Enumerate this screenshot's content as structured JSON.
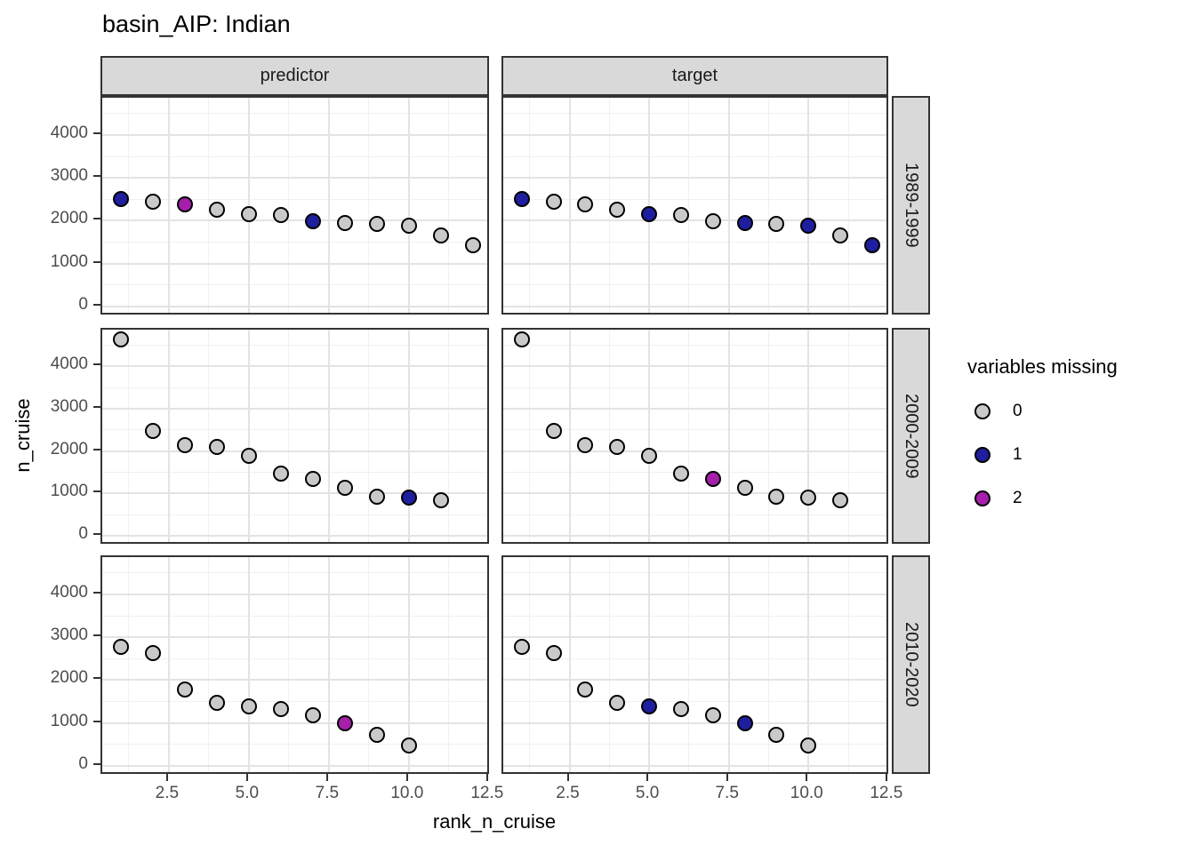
{
  "title": "basin_AIP: Indian",
  "legend": {
    "title": "variables missing",
    "items": [
      {
        "label": "0",
        "color": "#C9C9C9"
      },
      {
        "label": "1",
        "color": "#1E1E9E"
      },
      {
        "label": "2",
        "color": "#A51FAA"
      }
    ]
  },
  "chart_data": {
    "type": "scatter",
    "title": "basin_AIP: Indian",
    "xlabel": "rank_n_cruise",
    "ylabel": "n_cruise",
    "facet_cols": [
      "predictor",
      "target"
    ],
    "facet_rows": [
      "1989-1999",
      "2000-2009",
      "2010-2020"
    ],
    "xlim": [
      0.42,
      12.56
    ],
    "ylim": [
      -230,
      4870
    ],
    "x_ticks": [
      2.5,
      5.0,
      7.5,
      10.0,
      12.5
    ],
    "x_tick_labels": [
      "2.5",
      "5.0",
      "7.5",
      "10.0",
      "12.5"
    ],
    "x_minor_ticks": [
      1.25,
      3.75,
      6.25,
      8.75,
      11.25
    ],
    "y_ticks": [
      0,
      1000,
      2000,
      3000,
      4000
    ],
    "y_tick_labels": [
      "0",
      "1000",
      "2000",
      "3000",
      "4000"
    ],
    "y_minor_ticks": [
      500,
      1500,
      2500,
      3500,
      4500
    ],
    "grid": true,
    "legend_title": "variables missing",
    "legend_position": "right",
    "color_scale": {
      "0": "#C9C9C9",
      "1": "#1E1E9E",
      "2": "#A51FAA"
    },
    "panels": [
      {
        "col": "predictor",
        "row": "1989-1999",
        "points": [
          {
            "x": 1,
            "y": 2510,
            "missing": 1
          },
          {
            "x": 2,
            "y": 2440,
            "missing": 0
          },
          {
            "x": 3,
            "y": 2380,
            "missing": 2
          },
          {
            "x": 4,
            "y": 2260,
            "missing": 0
          },
          {
            "x": 5,
            "y": 2160,
            "missing": 0
          },
          {
            "x": 6,
            "y": 2130,
            "missing": 0
          },
          {
            "x": 7,
            "y": 1980,
            "missing": 1
          },
          {
            "x": 8,
            "y": 1950,
            "missing": 0
          },
          {
            "x": 9,
            "y": 1930,
            "missing": 0
          },
          {
            "x": 10,
            "y": 1890,
            "missing": 0
          },
          {
            "x": 11,
            "y": 1650,
            "missing": 0
          },
          {
            "x": 12,
            "y": 1420,
            "missing": 0
          }
        ]
      },
      {
        "col": "target",
        "row": "1989-1999",
        "points": [
          {
            "x": 1,
            "y": 2510,
            "missing": 1
          },
          {
            "x": 2,
            "y": 2440,
            "missing": 0
          },
          {
            "x": 3,
            "y": 2380,
            "missing": 0
          },
          {
            "x": 4,
            "y": 2260,
            "missing": 0
          },
          {
            "x": 5,
            "y": 2160,
            "missing": 1
          },
          {
            "x": 6,
            "y": 2130,
            "missing": 0
          },
          {
            "x": 7,
            "y": 1980,
            "missing": 0
          },
          {
            "x": 8,
            "y": 1950,
            "missing": 1
          },
          {
            "x": 9,
            "y": 1930,
            "missing": 0
          },
          {
            "x": 10,
            "y": 1890,
            "missing": 1
          },
          {
            "x": 11,
            "y": 1650,
            "missing": 0
          },
          {
            "x": 12,
            "y": 1420,
            "missing": 1
          }
        ]
      },
      {
        "col": "predictor",
        "row": "2000-2009",
        "points": [
          {
            "x": 1,
            "y": 4630,
            "missing": 0
          },
          {
            "x": 2,
            "y": 2470,
            "missing": 0
          },
          {
            "x": 3,
            "y": 2140,
            "missing": 0
          },
          {
            "x": 4,
            "y": 2110,
            "missing": 0
          },
          {
            "x": 5,
            "y": 1900,
            "missing": 0
          },
          {
            "x": 6,
            "y": 1480,
            "missing": 0
          },
          {
            "x": 7,
            "y": 1350,
            "missing": 0
          },
          {
            "x": 8,
            "y": 1140,
            "missing": 0
          },
          {
            "x": 9,
            "y": 930,
            "missing": 0
          },
          {
            "x": 10,
            "y": 910,
            "missing": 1
          },
          {
            "x": 11,
            "y": 850,
            "missing": 0
          }
        ]
      },
      {
        "col": "target",
        "row": "2000-2009",
        "points": [
          {
            "x": 1,
            "y": 4630,
            "missing": 0
          },
          {
            "x": 2,
            "y": 2470,
            "missing": 0
          },
          {
            "x": 3,
            "y": 2140,
            "missing": 0
          },
          {
            "x": 4,
            "y": 2110,
            "missing": 0
          },
          {
            "x": 5,
            "y": 1900,
            "missing": 0
          },
          {
            "x": 6,
            "y": 1480,
            "missing": 0
          },
          {
            "x": 7,
            "y": 1350,
            "missing": 2
          },
          {
            "x": 8,
            "y": 1140,
            "missing": 0
          },
          {
            "x": 9,
            "y": 930,
            "missing": 0
          },
          {
            "x": 10,
            "y": 910,
            "missing": 0
          },
          {
            "x": 11,
            "y": 850,
            "missing": 0
          }
        ]
      },
      {
        "col": "predictor",
        "row": "2010-2020",
        "points": [
          {
            "x": 1,
            "y": 2780,
            "missing": 0
          },
          {
            "x": 2,
            "y": 2630,
            "missing": 0
          },
          {
            "x": 3,
            "y": 1790,
            "missing": 0
          },
          {
            "x": 4,
            "y": 1480,
            "missing": 0
          },
          {
            "x": 5,
            "y": 1380,
            "missing": 0
          },
          {
            "x": 6,
            "y": 1330,
            "missing": 0
          },
          {
            "x": 7,
            "y": 1180,
            "missing": 0
          },
          {
            "x": 8,
            "y": 1000,
            "missing": 2
          },
          {
            "x": 9,
            "y": 720,
            "missing": 0
          },
          {
            "x": 10,
            "y": 470,
            "missing": 0
          }
        ]
      },
      {
        "col": "target",
        "row": "2010-2020",
        "points": [
          {
            "x": 1,
            "y": 2780,
            "missing": 0
          },
          {
            "x": 2,
            "y": 2630,
            "missing": 0
          },
          {
            "x": 3,
            "y": 1790,
            "missing": 0
          },
          {
            "x": 4,
            "y": 1480,
            "missing": 0
          },
          {
            "x": 5,
            "y": 1380,
            "missing": 1
          },
          {
            "x": 6,
            "y": 1330,
            "missing": 0
          },
          {
            "x": 7,
            "y": 1180,
            "missing": 0
          },
          {
            "x": 8,
            "y": 1000,
            "missing": 1
          },
          {
            "x": 9,
            "y": 720,
            "missing": 0
          },
          {
            "x": 10,
            "y": 470,
            "missing": 0
          }
        ]
      }
    ]
  }
}
